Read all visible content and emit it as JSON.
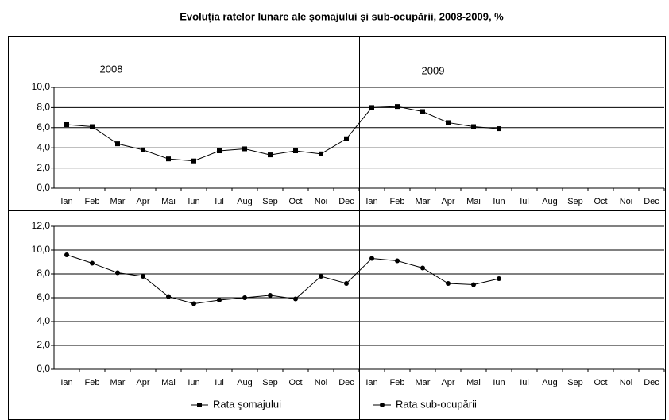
{
  "chart_data": [
    {
      "type": "line",
      "title": "Evoluția ratelor lunare ale şomajului şi sub-ocupării, 2008-2009, %",
      "annotations": [
        "2008",
        "2009"
      ],
      "categories": [
        "Ian",
        "Feb",
        "Mar",
        "Apr",
        "Mai",
        "Iun",
        "Iul",
        "Aug",
        "Sep",
        "Oct",
        "Noi",
        "Dec",
        "Ian",
        "Feb",
        "Mar",
        "Apr",
        "Mai",
        "Iun",
        "Iul",
        "Aug",
        "Sep",
        "Oct",
        "Noi",
        "Dec"
      ],
      "series": [
        {
          "name": "Rata şomajului",
          "color": "#000000",
          "marker": "square",
          "values": [
            6.3,
            6.1,
            4.4,
            3.8,
            2.9,
            2.7,
            3.7,
            3.9,
            3.3,
            3.7,
            3.4,
            4.9,
            8.0,
            8.1,
            7.6,
            6.5,
            6.1,
            5.9,
            null,
            null,
            null,
            null,
            null,
            null
          ]
        }
      ],
      "ylim": [
        0,
        10
      ],
      "yticks": [
        {
          "value": 0,
          "label": "0,0"
        },
        {
          "value": 2,
          "label": "2,0"
        },
        {
          "value": 4,
          "label": "4,0"
        },
        {
          "value": 6,
          "label": "6,0"
        },
        {
          "value": 8,
          "label": "8,0"
        },
        {
          "value": 10,
          "label": "10,0"
        }
      ],
      "grid": true
    },
    {
      "type": "line",
      "categories": [
        "Ian",
        "Feb",
        "Mar",
        "Apr",
        "Mai",
        "Iun",
        "Iul",
        "Aug",
        "Sep",
        "Oct",
        "Noi",
        "Dec",
        "Ian",
        "Feb",
        "Mar",
        "Apr",
        "Mai",
        "Iun",
        "Iul",
        "Aug",
        "Sep",
        "Oct",
        "Noi",
        "Dec"
      ],
      "series": [
        {
          "name": "Rata sub-ocupării",
          "color": "#000000",
          "marker": "circle",
          "values": [
            9.6,
            8.9,
            8.1,
            7.8,
            6.1,
            5.5,
            5.8,
            6.0,
            6.2,
            5.9,
            7.8,
            7.2,
            9.3,
            9.1,
            8.5,
            7.2,
            7.1,
            7.6,
            null,
            null,
            null,
            null,
            null,
            null
          ]
        }
      ],
      "ylim": [
        0,
        12
      ],
      "yticks": [
        {
          "value": 0,
          "label": "0,0"
        },
        {
          "value": 2,
          "label": "2,0"
        },
        {
          "value": 4,
          "label": "4,0"
        },
        {
          "value": 6,
          "label": "6,0"
        },
        {
          "value": 8,
          "label": "8,0"
        },
        {
          "value": 10,
          "label": "10,0"
        },
        {
          "value": 12,
          "label": "12,0"
        }
      ],
      "grid": true
    }
  ]
}
